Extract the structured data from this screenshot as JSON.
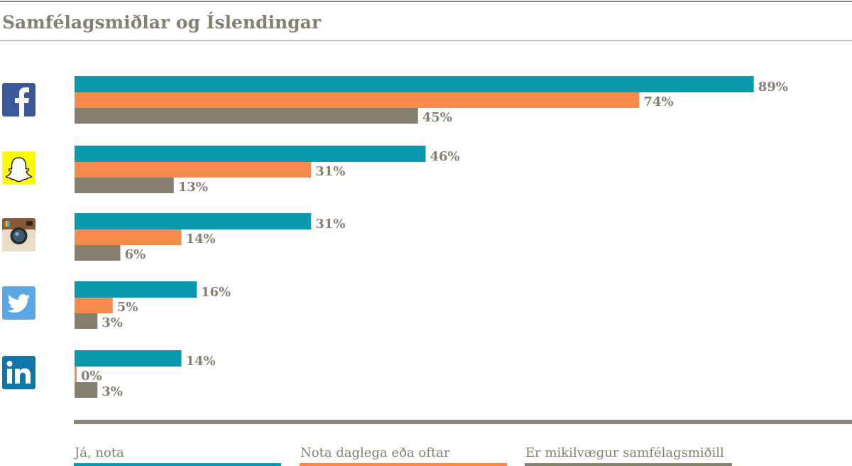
{
  "title": "Samfélagsmiðlar og Íslendingar",
  "colors": {
    "text": "#858070",
    "rule": "#8a8677",
    "series": [
      "#0a9aae",
      "#f68b4b",
      "#858070"
    ],
    "facebook": "#3b5998",
    "snapchat": "#fffc00",
    "instagram": "#517fa4",
    "twitter": "#5aa9e6",
    "linkedin": "#0e76a8"
  },
  "chart_data": {
    "type": "bar",
    "orientation": "horizontal",
    "title": "Samfélagsmiðlar og Íslendingar",
    "categories": [
      "Facebook",
      "Snapchat",
      "Instagram",
      "Twitter",
      "LinkedIn"
    ],
    "category_icons": [
      "facebook-icon",
      "snapchat-icon",
      "instagram-icon",
      "twitter-icon",
      "linkedin-icon"
    ],
    "series": [
      {
        "name": "Já, nota",
        "values": [
          89,
          46,
          31,
          16,
          14
        ]
      },
      {
        "name": "Nota daglega eða oftar",
        "values": [
          74,
          31,
          14,
          5,
          0
        ]
      },
      {
        "name": "Er mikilvægur samfélagsmiðill",
        "values": [
          45,
          13,
          6,
          3,
          3
        ]
      }
    ],
    "value_labels": [
      [
        "89%",
        "74%",
        "45%"
      ],
      [
        "46%",
        "31%",
        "13%"
      ],
      [
        "31%",
        "14%",
        "6%"
      ],
      [
        "16%",
        "5%",
        "3%"
      ],
      [
        "14%",
        "0%",
        "3%"
      ]
    ],
    "unit": "%",
    "xlim": [
      0,
      100
    ],
    "grid": false,
    "legend_position": "bottom"
  }
}
